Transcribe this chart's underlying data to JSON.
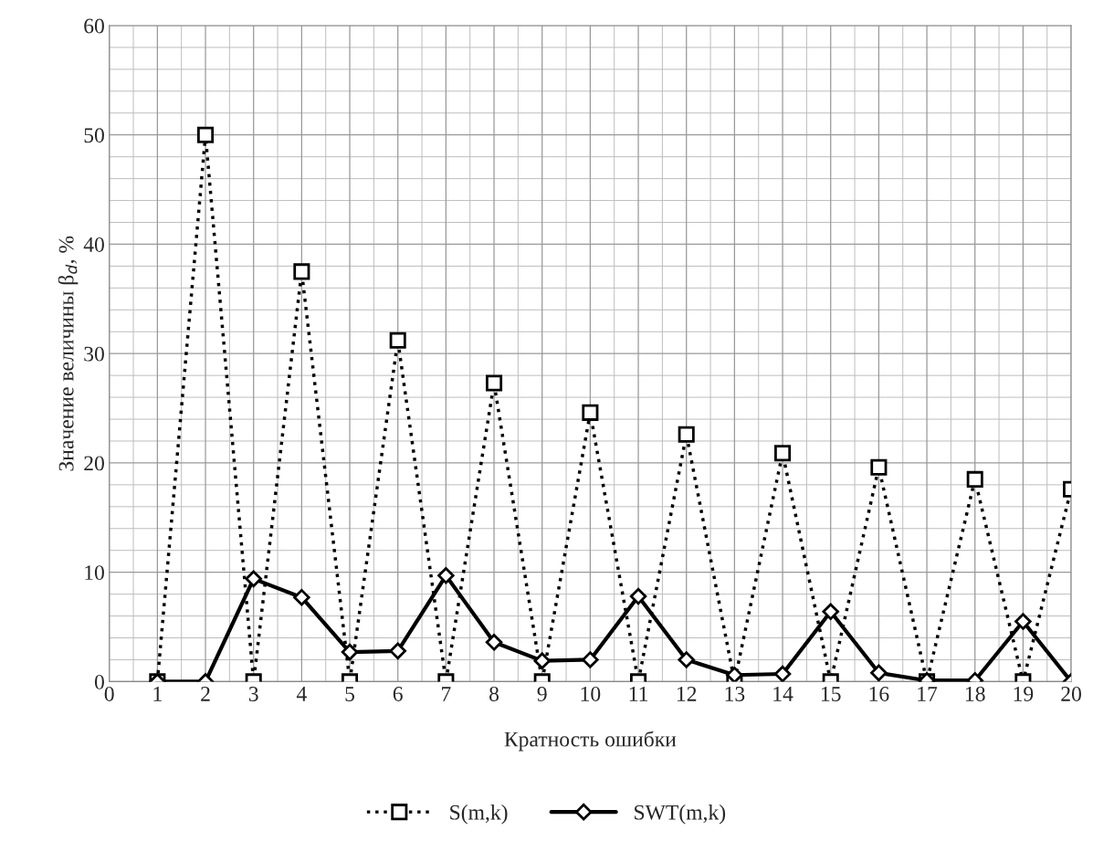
{
  "chart_data": {
    "type": "line",
    "xlabel": "Кратность ошибки",
    "ylabel": "Значение величины β$_{d}$, %",
    "x": [
      1,
      2,
      3,
      4,
      5,
      6,
      7,
      8,
      9,
      10,
      11,
      12,
      13,
      14,
      15,
      16,
      17,
      18,
      19,
      20
    ],
    "series": [
      {
        "name": "S(m,k)",
        "color": "#000000",
        "line_style": "dotted",
        "marker": "square",
        "values": [
          0,
          50,
          0,
          37.5,
          0,
          31.2,
          0,
          27.3,
          0,
          24.6,
          0,
          22.6,
          0,
          20.9,
          0,
          19.6,
          0,
          18.5,
          0,
          17.6
        ]
      },
      {
        "name": "SWT(m,k)",
        "color": "#000000",
        "line_style": "solid",
        "marker": "diamond",
        "values": [
          0,
          0,
          9.4,
          7.7,
          2.7,
          2.8,
          9.7,
          3.6,
          1.9,
          2.0,
          7.8,
          2.0,
          0.6,
          0.7,
          6.4,
          0.8,
          0.1,
          0.1,
          5.5,
          0
        ]
      }
    ],
    "xlim": [
      0,
      20
    ],
    "xticks": [
      0,
      1,
      2,
      3,
      4,
      5,
      6,
      7,
      8,
      9,
      10,
      11,
      12,
      13,
      14,
      15,
      16,
      17,
      18,
      19,
      20
    ],
    "ylim": [
      0,
      60
    ],
    "yticks": [
      0,
      10,
      20,
      30,
      40,
      50,
      60
    ],
    "grid": true,
    "legend": "bottom"
  }
}
